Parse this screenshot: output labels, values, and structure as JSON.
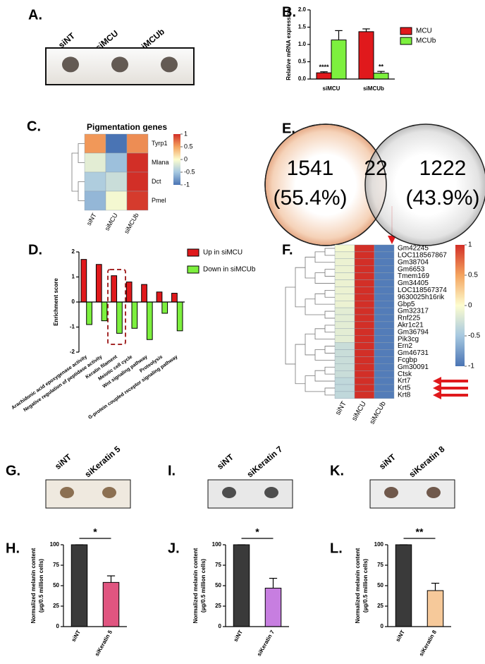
{
  "chart_data": [
    {
      "type": "image",
      "panel": "A.",
      "labels": [
        "siNT",
        "siMCU",
        "siMCUb"
      ]
    },
    {
      "type": "bar",
      "panel": "B.",
      "ylabel": "Relative mRNA expression",
      "categories": [
        "siMCU",
        "siMCUb"
      ],
      "series": [
        {
          "name": "MCU",
          "color": "#e0191c",
          "values": [
            0.18,
            1.37
          ],
          "errors": [
            0.03,
            0.08
          ],
          "significance": [
            "****",
            null
          ]
        },
        {
          "name": "MCUb",
          "color": "#7df03e",
          "values": [
            1.13,
            0.17
          ],
          "errors": [
            0.27,
            0.05
          ],
          "significance": [
            null,
            "**"
          ]
        }
      ],
      "ylim": [
        0,
        2
      ],
      "yticks": [
        {
          "value": 0,
          "label": "0.0"
        },
        0.5,
        {
          "value": 1,
          "label": "1.0"
        },
        1.5,
        {
          "value": 2,
          "label": "2.0"
        }
      ]
    },
    {
      "type": "heatmap",
      "panel": "C.",
      "title": "Pigmentation genes",
      "rows": [
        "Tyrp1",
        "Mlana",
        "Dct",
        "Pmel"
      ],
      "columns": [
        "siNT",
        "siMCU",
        "siMCUb"
      ],
      "values": [
        [
          0.55,
          -1,
          0.6
        ],
        [
          -0.15,
          -0.55,
          1
        ],
        [
          -0.45,
          -0.3,
          1
        ],
        [
          -0.6,
          -0.05,
          0.95
        ]
      ],
      "clim": [
        -1,
        1
      ],
      "colorbar_ticks": [
        -1,
        -0.5,
        0,
        0.5,
        1
      ]
    },
    {
      "type": "venn",
      "panel": "E.",
      "values": [
        1541,
        22,
        1222
      ],
      "percents": [
        55.4,
        43.9
      ],
      "percent_labels": [
        "(55.4%)",
        "(43.9%)"
      ]
    },
    {
      "type": "bar",
      "panel": "D.",
      "ylabel": "Enrichment score",
      "categories": [
        "Arachidonic acid epoxygenase activity",
        "Negative regulation of peptidase activity",
        "Keratin filament",
        "Meiotic cell cycle",
        "Wnt signaling pathway",
        "Proteolysis",
        "G-protein coupled receptor signaling pathway"
      ],
      "series": [
        {
          "name": "Up in siMCU",
          "color": "#e0191c",
          "values": [
            1.7,
            1.5,
            1.05,
            0.8,
            0.7,
            0.4,
            0.35
          ]
        },
        {
          "name": "Down in siMCUb",
          "color": "#7df03e",
          "values": [
            -0.9,
            -0.75,
            -1.25,
            -1.05,
            -1.5,
            -0.45,
            -1.15
          ]
        }
      ],
      "ylim": [
        -2,
        2
      ],
      "yticks": [
        -2,
        -1,
        0,
        1,
        2
      ]
    },
    {
      "type": "heatmap",
      "panel": "F.",
      "rows": [
        "Gm42245",
        "LOC118567867",
        "Gm38704",
        "Gm6653",
        "Tmem169",
        "Gm34405",
        "LOC118567374",
        "9630025h16rik",
        "Gbp5",
        "Gm32317",
        "Rnf225",
        "Akr1c21",
        "Gm36794",
        "Pik3cg",
        "Ern2",
        "Gm46731",
        "Fcgbp",
        "Gm30091",
        "Ctsk",
        "Krt7",
        "Krt5",
        "Krt8"
      ],
      "columns": [
        "siNT",
        "siMCU",
        "siMCUb"
      ],
      "values": [
        [
          -0.05,
          1,
          -0.95
        ],
        [
          -0.1,
          1,
          -0.95
        ],
        [
          -0.1,
          1,
          -0.95
        ],
        [
          -0.1,
          1,
          -0.95
        ],
        [
          -0.1,
          1,
          -0.95
        ],
        [
          -0.1,
          1,
          -0.95
        ],
        [
          -0.1,
          1,
          -0.95
        ],
        [
          -0.1,
          1,
          -0.95
        ],
        [
          -0.1,
          1,
          -0.95
        ],
        [
          -0.15,
          1,
          -0.95
        ],
        [
          -0.15,
          1,
          -0.95
        ],
        [
          -0.15,
          1,
          -0.95
        ],
        [
          -0.15,
          1,
          -0.95
        ],
        [
          -0.15,
          1,
          -0.95
        ],
        [
          -0.3,
          1,
          -0.95
        ],
        [
          -0.3,
          1,
          -0.95
        ],
        [
          -0.3,
          1,
          -0.95
        ],
        [
          -0.3,
          1,
          -0.95
        ],
        [
          -0.3,
          1,
          -0.95
        ],
        [
          -0.35,
          1,
          -0.95
        ],
        [
          -0.35,
          1,
          -0.95
        ],
        [
          -0.35,
          1,
          -0.95
        ]
      ],
      "clim": [
        -1,
        1
      ],
      "colorbar_ticks": [
        -1,
        -0.5,
        0,
        0.5,
        1
      ]
    },
    {
      "type": "image",
      "panel": "G.",
      "labels": [
        "siNT",
        "siKeratin 5"
      ]
    },
    {
      "type": "bar",
      "panel": "H.",
      "ylabel": [
        "Normalized melanin content",
        "(µg/0.5 million cells)"
      ],
      "categories": [
        "siNT",
        "siKeratin 5"
      ],
      "values": [
        100,
        54
      ],
      "errors": [
        0,
        8
      ],
      "colors": [
        "#3a3a3a",
        "#e05580"
      ],
      "significance": "*",
      "ylim": [
        0,
        100
      ],
      "yticks": [
        0,
        25,
        50,
        75,
        100
      ]
    },
    {
      "type": "image",
      "panel": "I.",
      "labels": [
        "siNT",
        "siKeratin 7"
      ]
    },
    {
      "type": "bar",
      "panel": "J.",
      "ylabel": [
        "Normalized melanin content",
        "(µg/0.5 million cells)"
      ],
      "categories": [
        "siNT",
        "siKeratin 7"
      ],
      "values": [
        100,
        47
      ],
      "errors": [
        0,
        12
      ],
      "colors": [
        "#3a3a3a",
        "#c77ee0"
      ],
      "significance": "*",
      "ylim": [
        0,
        100
      ],
      "yticks": [
        0,
        25,
        50,
        75,
        100
      ]
    },
    {
      "type": "image",
      "panel": "K.",
      "labels": [
        "siNT",
        "siKeratin 8"
      ]
    },
    {
      "type": "bar",
      "panel": "L.",
      "ylabel": [
        "Normalized melanin content",
        "(µg/0.5 million cells)"
      ],
      "categories": [
        "siNT",
        "siKeratin 8"
      ],
      "values": [
        100,
        44
      ],
      "errors": [
        0,
        9
      ],
      "colors": [
        "#3a3a3a",
        "#f6c99a"
      ],
      "significance": "**",
      "ylim": [
        0,
        100
      ],
      "yticks": [
        0,
        25,
        50,
        75,
        100
      ]
    }
  ]
}
